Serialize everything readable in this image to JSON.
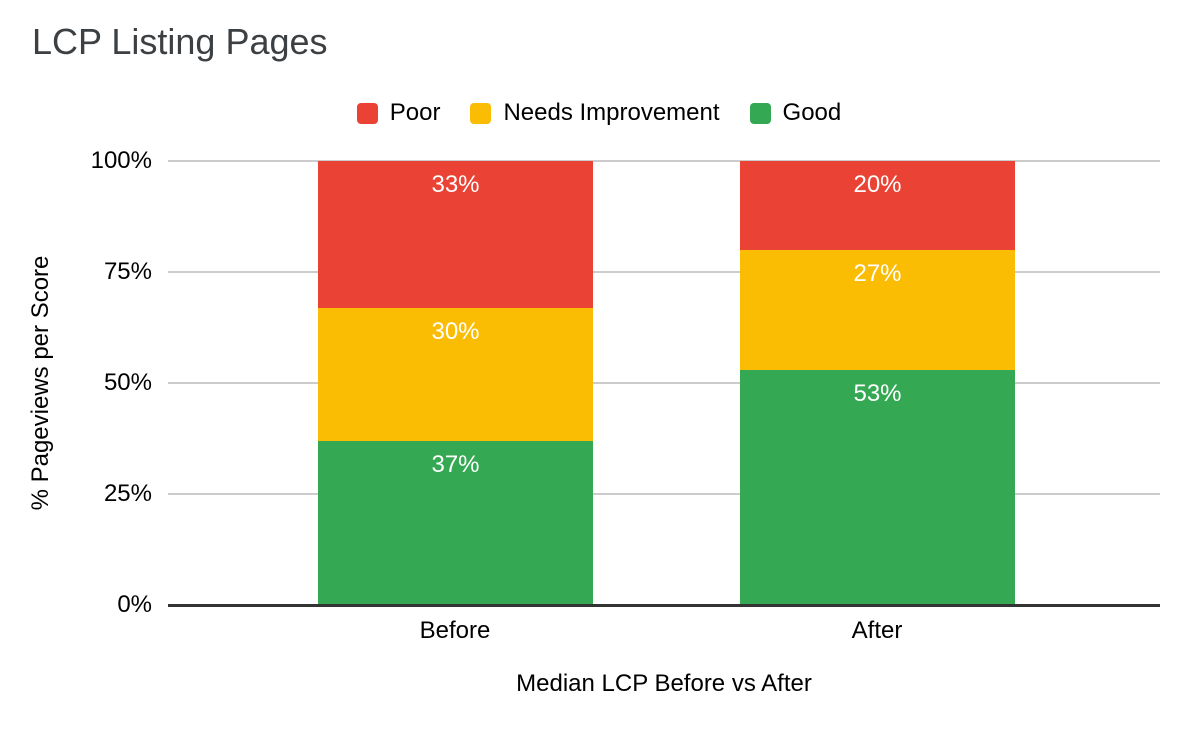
{
  "title": "LCP Listing Pages",
  "chart_data": {
    "type": "bar",
    "stacked": true,
    "title": "LCP Listing Pages",
    "xlabel": "Median LCP Before vs After",
    "ylabel": "% Pageviews per Score",
    "categories": [
      "Before",
      "After"
    ],
    "series": [
      {
        "name": "Poor",
        "color": "#EA4335",
        "values": [
          33,
          20
        ]
      },
      {
        "name": "Needs Improvement",
        "color": "#FBBC04",
        "values": [
          30,
          27
        ]
      },
      {
        "name": "Good",
        "color": "#34A853",
        "values": [
          37,
          53
        ]
      }
    ],
    "value_suffix": "%",
    "y_ticks": [
      "100%",
      "75%",
      "50%",
      "25%",
      "0%"
    ],
    "ylim": [
      0,
      100
    ],
    "grid": true,
    "legend_position": "top",
    "colors": {
      "gridline": "#cccccc",
      "baseline": "#333333",
      "title_text": "#3c4043",
      "axis_text": "#000000",
      "data_label_text": "#ffffff"
    }
  }
}
